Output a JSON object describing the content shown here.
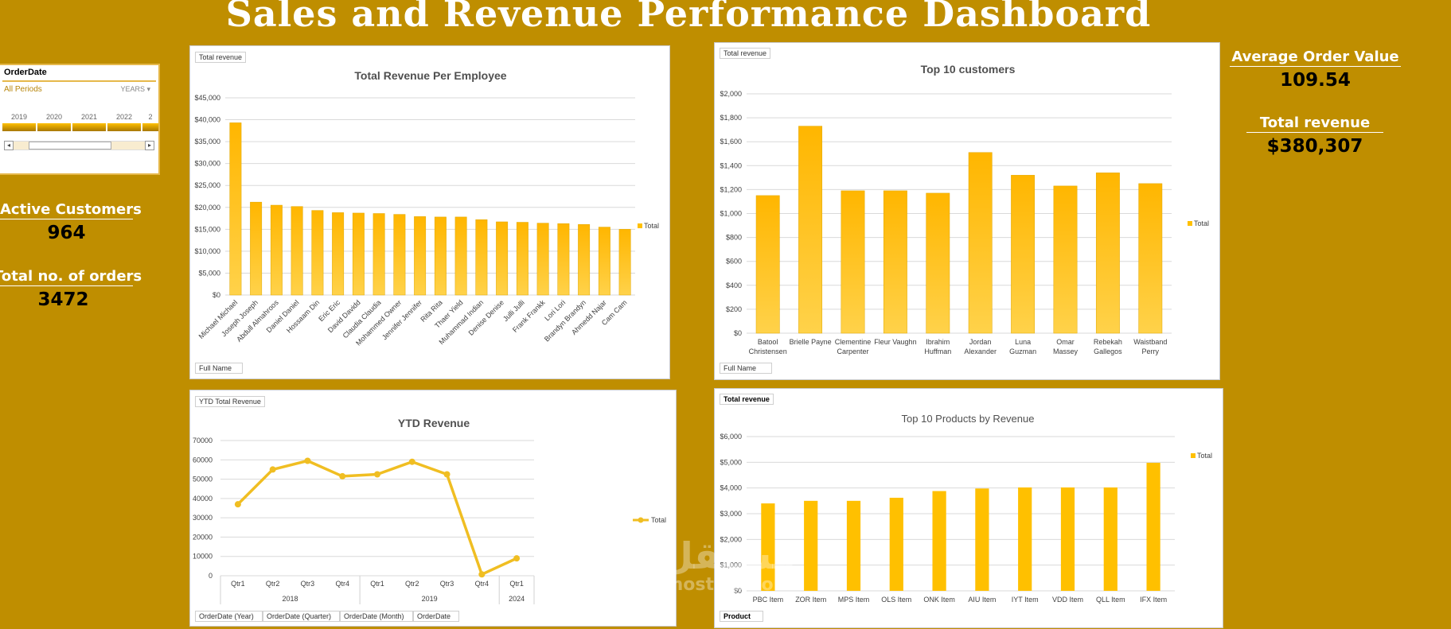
{
  "dashboard": {
    "title": "Sales and Revenue Performance Dashboard"
  },
  "slicer": {
    "header": "OrderDate",
    "selection": "All Periods",
    "level": "YEARS",
    "level_arrow": "▾",
    "years": [
      "2019",
      "2020",
      "2021",
      "2022",
      "2"
    ],
    "scroll_left": "◂",
    "scroll_right": "▸"
  },
  "kpis": {
    "active_customers": {
      "label": "Active Customers",
      "value": "964"
    },
    "total_orders": {
      "label": "Total no. of orders",
      "value": "3472"
    },
    "avg_order_value": {
      "label": "Average Order Value",
      "value": "109.54"
    },
    "total_revenue": {
      "label": "Total revenue",
      "value": "$380,307"
    }
  },
  "watermark": {
    "arabic": "مستقل",
    "latin": "mostaql.com"
  },
  "colors": {
    "background": "#BF8E00",
    "bar": "#FFC000",
    "line": "#F0BE22",
    "grid": "#D9D9D9"
  },
  "chart_data": [
    {
      "id": "employee",
      "type": "bar",
      "title": "Total Revenue Per Employee",
      "value_field": "Total revenue",
      "axis_field": "Full Name",
      "legend": "Total",
      "legend_position": "right",
      "categories": [
        "Michael Michael",
        "Joseph Joseph",
        "Abdull Almahroos",
        "Daniel Daniel",
        "Hossaam Din",
        "Eric Eric",
        "David Davidd",
        "Claudia Claudia",
        "Mohammed Owner",
        "Jennifer Jennifer",
        "Rita Rita",
        "Thaer Yield",
        "Muhammad Indian",
        "Denise Denise",
        "Julli Julli",
        "Frank Frankk",
        "Lori Lori",
        "Brandyn Brandyn",
        "Ahmedd Najar",
        "Cam Cam"
      ],
      "values": [
        39300,
        21200,
        20500,
        20200,
        19300,
        18800,
        18700,
        18600,
        18400,
        17900,
        17800,
        17800,
        17200,
        16700,
        16600,
        16400,
        16300,
        16100,
        15500,
        15000
      ],
      "ylim": [
        0,
        45000
      ],
      "yticks": [
        "$0",
        "$5,000",
        "$10,000",
        "$15,000",
        "$20,000",
        "$25,000",
        "$30,000",
        "$35,000",
        "$40,000",
        "$45,000"
      ],
      "grid": true
    },
    {
      "id": "customers",
      "type": "bar",
      "title": "Top 10 customers",
      "value_field": "Total revenue",
      "axis_field": "Full Name",
      "legend": "Total",
      "legend_position": "right",
      "categories": [
        [
          "Batool",
          "Christensen"
        ],
        [
          "Brielle Payne"
        ],
        [
          "Clementine",
          "Carpenter"
        ],
        [
          "Fleur Vaughn"
        ],
        [
          "Ibrahim",
          "Huffman"
        ],
        [
          "Jordan",
          "Alexander"
        ],
        [
          "Luna",
          "Guzman"
        ],
        [
          "Omar",
          "Massey"
        ],
        [
          "Rebekah",
          "Gallegos"
        ],
        [
          "Waistband",
          "Perry"
        ]
      ],
      "values": [
        1150,
        1730,
        1190,
        1190,
        1170,
        1510,
        1320,
        1230,
        1340,
        1250
      ],
      "ylim": [
        0,
        2000
      ],
      "yticks": [
        "$0",
        "$200",
        "$400",
        "$600",
        "$800",
        "$1,000",
        "$1,200",
        "$1,400",
        "$1,600",
        "$1,800",
        "$2,000"
      ],
      "grid": true
    },
    {
      "id": "ytd",
      "type": "line",
      "title": "YTD Revenue",
      "value_field": "YTD Total Revenue",
      "axis_fields": [
        "OrderDate (Year)",
        "OrderDate (Quarter)",
        "OrderDate (Month)",
        "OrderDate"
      ],
      "legend": "Total",
      "legend_position": "right",
      "categories": [
        "Qtr1",
        "Qtr2",
        "Qtr3",
        "Qtr4",
        "Qtr1",
        "Qtr2",
        "Qtr3",
        "Qtr4",
        "Qtr1"
      ],
      "groups": [
        {
          "label": "2018",
          "count": 4
        },
        {
          "label": "2019",
          "count": 4
        },
        {
          "label": "2024",
          "count": 1
        }
      ],
      "values": [
        37000,
        55000,
        59500,
        51500,
        52500,
        59000,
        52500,
        700,
        9000
      ],
      "ylim": [
        0,
        70000
      ],
      "yticks": [
        "0",
        "10000",
        "20000",
        "30000",
        "40000",
        "50000",
        "60000",
        "70000"
      ],
      "grid": true
    },
    {
      "id": "products",
      "type": "bar",
      "title": "Top 10 Products by Revenue",
      "value_field": "Total revenue",
      "axis_field": "Product",
      "legend": "Total",
      "legend_position": "right",
      "categories": [
        "PBC Item",
        "ZOR Item",
        "MPS Item",
        "OLS Item",
        "ONK Item",
        "AIU Item",
        "IYT Item",
        "VDD Item",
        "QLL Item",
        "IFX Item"
      ],
      "values": [
        3400,
        3500,
        3500,
        3620,
        3880,
        3980,
        4020,
        4020,
        4020,
        4980
      ],
      "ylim": [
        0,
        6000
      ],
      "yticks": [
        "$0",
        "$1,000",
        "$2,000",
        "$3,000",
        "$4,000",
        "$5,000",
        "$6,000"
      ],
      "grid": true
    }
  ]
}
